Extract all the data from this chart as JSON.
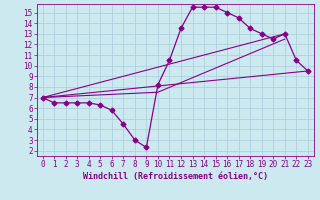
{
  "title": "",
  "xlabel": "Windchill (Refroidissement éolien,°C)",
  "ylabel": "",
  "background_color": "#cce9f0",
  "grid_color": "#aaccdd",
  "line_color": "#880088",
  "xlim": [
    -0.5,
    23.5
  ],
  "ylim": [
    1.5,
    15.8
  ],
  "yticks": [
    2,
    3,
    4,
    5,
    6,
    7,
    8,
    9,
    10,
    11,
    12,
    13,
    14,
    15
  ],
  "xticks": [
    0,
    1,
    2,
    3,
    4,
    5,
    6,
    7,
    8,
    9,
    10,
    11,
    12,
    13,
    14,
    15,
    16,
    17,
    18,
    19,
    20,
    21,
    22,
    23
  ],
  "series1_x": [
    0,
    1,
    2,
    3,
    4,
    5,
    6,
    7,
    8,
    9,
    10,
    11,
    12,
    13,
    14,
    15,
    16,
    17,
    18,
    19,
    20,
    21,
    22,
    23
  ],
  "series1_y": [
    7.0,
    6.5,
    6.5,
    6.5,
    6.5,
    6.3,
    5.8,
    4.5,
    3.0,
    2.3,
    8.2,
    10.5,
    13.5,
    15.5,
    15.5,
    15.5,
    15.0,
    14.5,
    13.5,
    13.0,
    12.5,
    13.0,
    10.5,
    9.5
  ],
  "series2_x": [
    0,
    23
  ],
  "series2_y": [
    7.0,
    9.5
  ],
  "series3_x": [
    0,
    21
  ],
  "series3_y": [
    7.0,
    13.0
  ],
  "series4_x": [
    0,
    10,
    21
  ],
  "series4_y": [
    7.0,
    7.5,
    12.5
  ],
  "tick_fontsize": 5.5,
  "xlabel_fontsize": 6.0
}
